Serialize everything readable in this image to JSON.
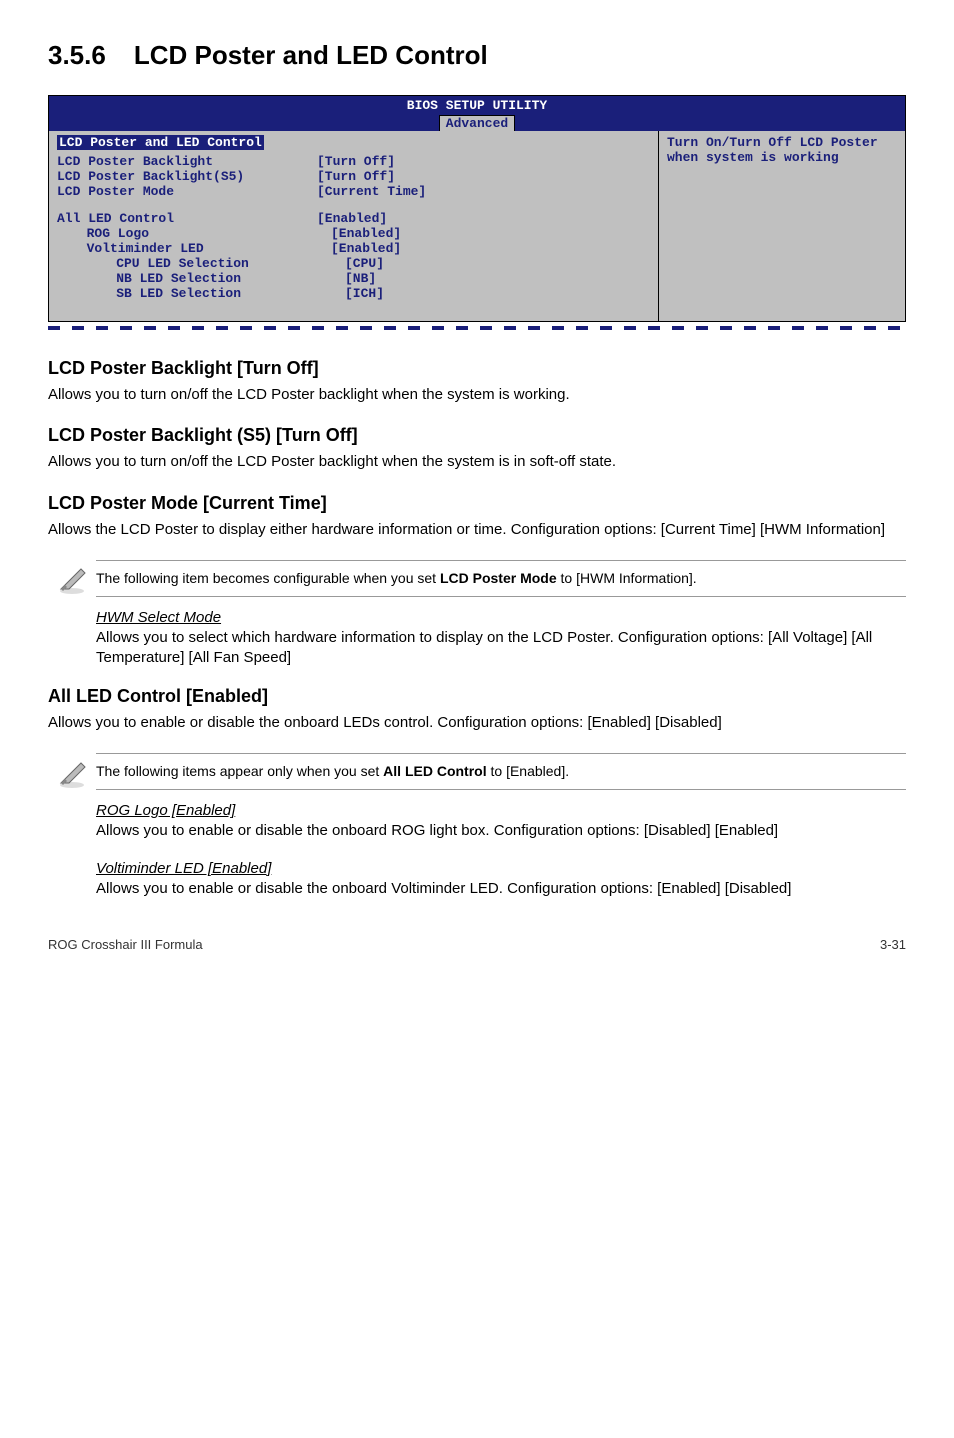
{
  "section": {
    "number": "3.5.6",
    "title": "LCD Poster and LED Control"
  },
  "bios": {
    "utility_title": "BIOS SETUP UTILITY",
    "tab": "Advanced",
    "section_head": "LCD Poster and LED Control",
    "rows_block1": [
      {
        "label": "LCD Poster Backlight",
        "value": "[Turn Off]",
        "indent": 0
      },
      {
        "label": "LCD Poster Backlight(S5)",
        "value": "[Turn Off]",
        "indent": 0
      },
      {
        "label": "LCD Poster Mode",
        "value": "[Current Time]",
        "indent": 0
      }
    ],
    "rows_block2": [
      {
        "label": "All LED Control",
        "value": "[Enabled]",
        "indent": 0
      },
      {
        "label": "ROG Logo",
        "value": "[Enabled]",
        "indent": 1
      },
      {
        "label": "Voltiminder LED",
        "value": "[Enabled]",
        "indent": 1
      },
      {
        "label": "CPU LED Selection",
        "value": "[CPU]",
        "indent": 2
      },
      {
        "label": "NB LED Selection",
        "value": "[NB]",
        "indent": 2
      },
      {
        "label": "SB LED Selection",
        "value": "[ICH]",
        "indent": 2
      }
    ],
    "help_text": "Turn On/Turn Off LCD Poster when system is working",
    "colors": {
      "header_bg": "#1a1f7a",
      "header_fg": "#ffffff",
      "body_bg": "#c0c0c0",
      "body_fg": "#1a1f7a"
    }
  },
  "subs": [
    {
      "heading": "LCD Poster Backlight [Turn Off]",
      "body": "Allows you to turn on/off the LCD Poster backlight when the system is working."
    },
    {
      "heading": "LCD Poster Backlight (S5) [Turn Off]",
      "body": "Allows you to turn on/off the LCD Poster backlight when the system is in soft-off state."
    },
    {
      "heading": "LCD Poster Mode [Current Time]",
      "body": "Allows the LCD Poster to display either hardware information or time. Configuration options: [Current Time] [HWM Information]"
    }
  ],
  "note1": {
    "text_pre": "The following item becomes configurable when you set ",
    "bold": "LCD Poster Mode",
    "text_post": " to [HWM Information]."
  },
  "hwm": {
    "head": "HWM Select Mode",
    "body": "Allows you to select which hardware information to display on the LCD Poster. Configuration options: [All Voltage] [All Temperature] [All Fan Speed]"
  },
  "all_led": {
    "heading": "All LED Control [Enabled]",
    "body": "Allows you to enable or disable the onboard LEDs control. Configuration options: [Enabled] [Disabled]"
  },
  "note2": {
    "text_pre": "The following items appear only when you set ",
    "bold": "All LED Control",
    "text_post": " to [Enabled]."
  },
  "rog": {
    "head": "ROG Logo [Enabled]",
    "body": "Allows you to enable or disable the onboard ROG light box. Configuration options: [Disabled] [Enabled]"
  },
  "volt": {
    "head": "Voltiminder LED [Enabled]",
    "body": "Allows you to enable or disable the onboard Voltiminder LED. Configuration options: [Enabled] [Disabled]"
  },
  "footer": {
    "left": "ROG Crosshair III Formula",
    "right": "3-31"
  }
}
